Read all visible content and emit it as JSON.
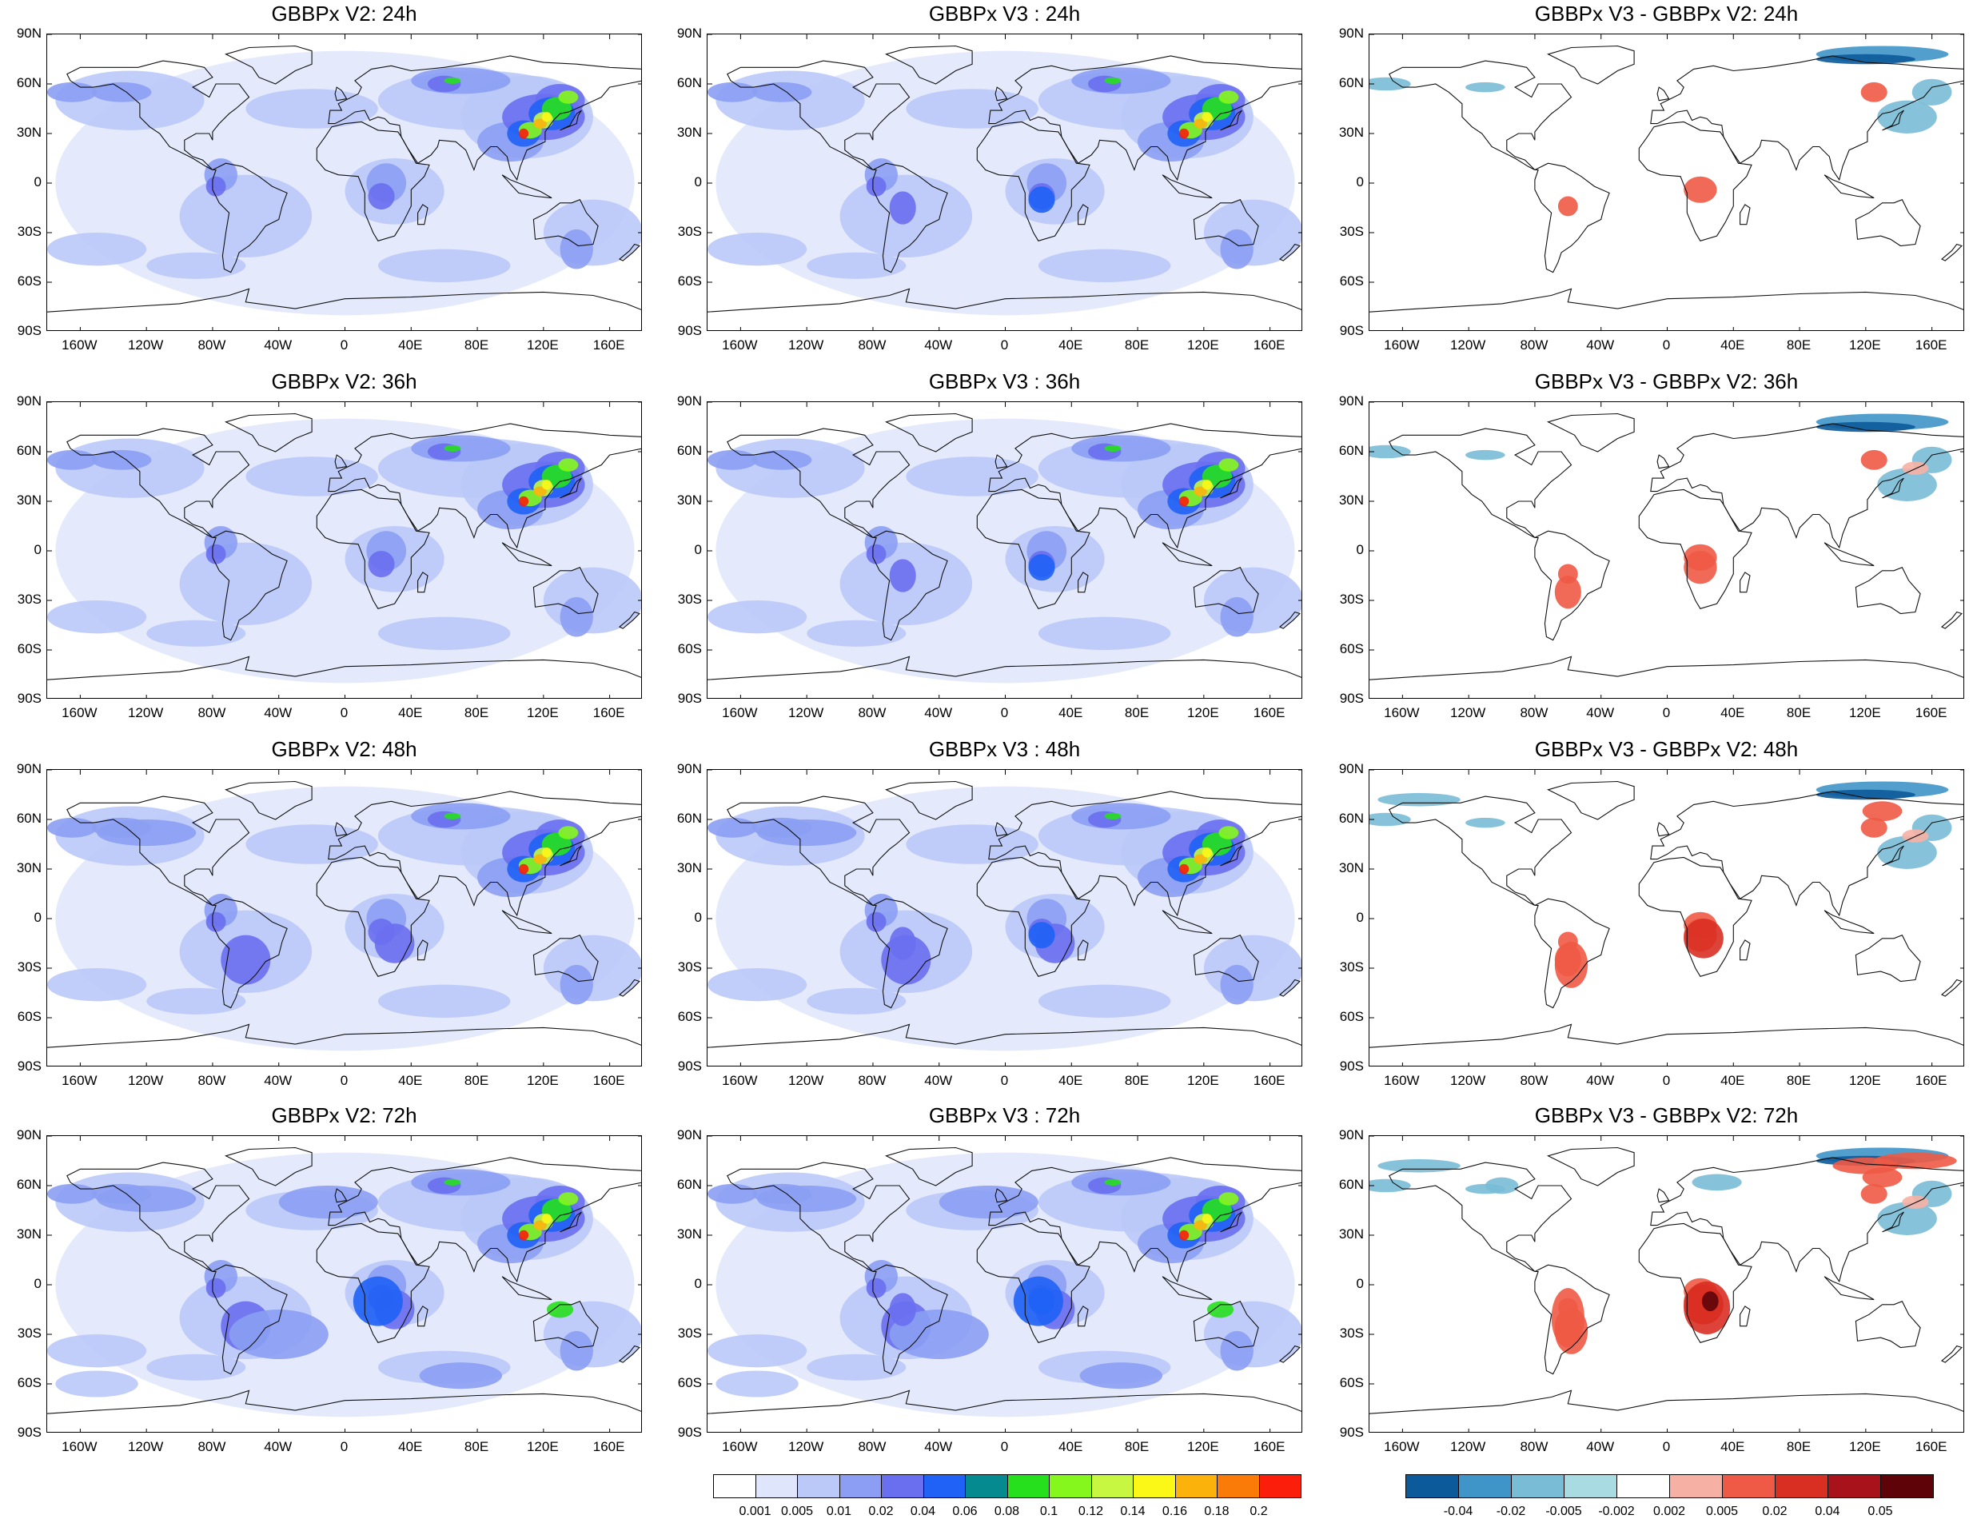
{
  "figure": {
    "columns": [
      "GBBPx V2",
      "GBBPx V3",
      "GBBPx V3 - GBBPx V2"
    ],
    "rows": [
      "24h",
      "36h",
      "48h",
      "72h"
    ]
  },
  "panels": [
    {
      "title": "GBBPx V2: 24h",
      "kind": "abs"
    },
    {
      "title": "GBBPx V3 : 24h",
      "kind": "abs"
    },
    {
      "title": "GBBPx V3 - GBBPx V2: 24h",
      "kind": "diff"
    },
    {
      "title": "GBBPx V2: 36h",
      "kind": "abs"
    },
    {
      "title": "GBBPx V3 : 36h",
      "kind": "abs"
    },
    {
      "title": "GBBPx V3 - GBBPx V2: 36h",
      "kind": "diff"
    },
    {
      "title": "GBBPx V2: 48h",
      "kind": "abs"
    },
    {
      "title": "GBBPx V3 : 48h",
      "kind": "abs"
    },
    {
      "title": "GBBPx V3 - GBBPx V2: 48h",
      "kind": "diff"
    },
    {
      "title": "GBBPx V2: 72h",
      "kind": "abs"
    },
    {
      "title": "GBBPx V3 : 72h",
      "kind": "abs"
    },
    {
      "title": "GBBPx V3 - GBBPx V2: 72h",
      "kind": "diff"
    }
  ],
  "axes": {
    "lat_ticks": [
      "90N",
      "60N",
      "30N",
      "0",
      "30S",
      "60S",
      "90S"
    ],
    "lon_ticks": [
      "160W",
      "120W",
      "80W",
      "40W",
      "0",
      "40E",
      "80E",
      "120E",
      "160E"
    ],
    "lat_range": [
      -90,
      90
    ],
    "lon_range": [
      -180,
      180
    ]
  },
  "colorbar_abs": {
    "levels": [
      "0.001",
      "0.005",
      "0.01",
      "0.02",
      "0.04",
      "0.06",
      "0.08",
      "0.1",
      "0.12",
      "0.14",
      "0.16",
      "0.18",
      "0.2"
    ],
    "colors": [
      "#ffffff",
      "#dfe6fb",
      "#bac9f8",
      "#8b9ef3",
      "#6a6ff0",
      "#1f62f5",
      "#058a8f",
      "#27e01d",
      "#85f71c",
      "#c7f741",
      "#fbf716",
      "#fbb30b",
      "#fb7b08",
      "#fb1e0b"
    ]
  },
  "colorbar_diff": {
    "levels": [
      "-0.04",
      "-0.02",
      "-0.005",
      "-0.002",
      "0.002",
      "0.005",
      "0.02",
      "0.04",
      "0.05"
    ],
    "colors": [
      "#0c5a9a",
      "#3f94c8",
      "#79bcd6",
      "#a9dbe2",
      "#ffffff",
      "#f6b1a4",
      "#ee5a45",
      "#d92f22",
      "#a8121a",
      "#5e0409"
    ]
  },
  "chart_data": [
    {
      "type": "heatmap",
      "title": "GBBPx V2: 24h",
      "xlim": [
        -180,
        180
      ],
      "ylim": [
        -90,
        90
      ],
      "max_region": "East Asia, up to 0.2"
    },
    {
      "type": "heatmap",
      "title": "GBBPx V3 : 24h",
      "xlim": [
        -180,
        180
      ],
      "ylim": [
        -90,
        90
      ],
      "max_region": "East Asia, up to 0.2"
    },
    {
      "type": "heatmap",
      "title": "GBBPx V3 - GBBPx V2: 24h",
      "xlim": [
        -180,
        180
      ],
      "ylim": [
        -90,
        90
      ],
      "range": [
        -0.04,
        0.05
      ]
    },
    {
      "type": "heatmap",
      "title": "GBBPx V2: 36h",
      "xlim": [
        -180,
        180
      ],
      "ylim": [
        -90,
        90
      ],
      "max_region": "East Asia, up to 0.2"
    },
    {
      "type": "heatmap",
      "title": "GBBPx V3 : 36h",
      "xlim": [
        -180,
        180
      ],
      "ylim": [
        -90,
        90
      ],
      "max_region": "East Asia, up to 0.2"
    },
    {
      "type": "heatmap",
      "title": "GBBPx V3 - GBBPx V2: 36h",
      "xlim": [
        -180,
        180
      ],
      "ylim": [
        -90,
        90
      ],
      "range": [
        -0.04,
        0.05
      ]
    },
    {
      "type": "heatmap",
      "title": "GBBPx V2: 48h",
      "xlim": [
        -180,
        180
      ],
      "ylim": [
        -90,
        90
      ],
      "max_region": "East Asia, up to 0.2"
    },
    {
      "type": "heatmap",
      "title": "GBBPx V3 : 48h",
      "xlim": [
        -180,
        180
      ],
      "ylim": [
        -90,
        90
      ],
      "max_region": "East Asia, up to 0.2"
    },
    {
      "type": "heatmap",
      "title": "GBBPx V3 - GBBPx V2: 48h",
      "xlim": [
        -180,
        180
      ],
      "ylim": [
        -90,
        90
      ],
      "range": [
        -0.04,
        0.05
      ]
    },
    {
      "type": "heatmap",
      "title": "GBBPx V2: 72h",
      "xlim": [
        -180,
        180
      ],
      "ylim": [
        -90,
        90
      ],
      "max_region": "East Asia, up to 0.2"
    },
    {
      "type": "heatmap",
      "title": "GBBPx V3 : 72h",
      "xlim": [
        -180,
        180
      ],
      "ylim": [
        -90,
        90
      ],
      "max_region": "East Asia, up to 0.2"
    },
    {
      "type": "heatmap",
      "title": "GBBPx V3 - GBBPx V2: 72h",
      "xlim": [
        -180,
        180
      ],
      "ylim": [
        -90,
        90
      ],
      "range": [
        -0.04,
        0.05
      ]
    }
  ]
}
